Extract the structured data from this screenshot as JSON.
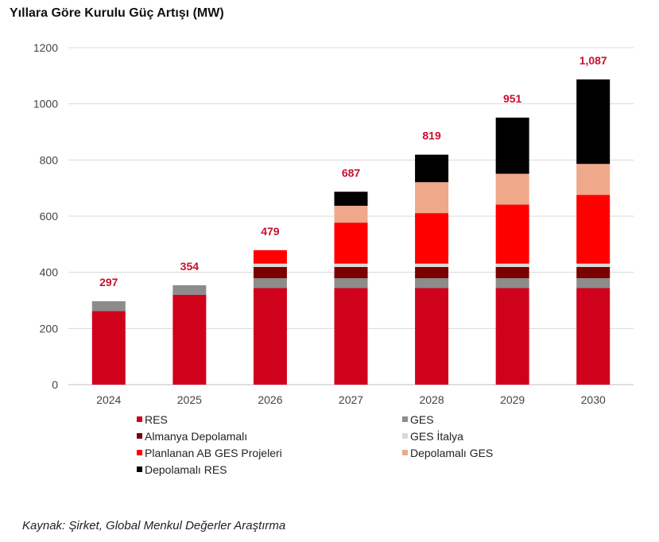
{
  "chart_data": {
    "type": "bar",
    "stacked": true,
    "title": "Yıllara Göre Kurulu Güç Artışı (MW)",
    "xlabel": "",
    "ylabel": "",
    "ylim": [
      0,
      1200
    ],
    "yticks": [
      0,
      200,
      400,
      600,
      800,
      1000,
      1200
    ],
    "grid": true,
    "legend": "bottom",
    "categories": [
      "2024",
      "2025",
      "2026",
      "2027",
      "2028",
      "2029",
      "2030"
    ],
    "totals": [
      "297",
      "354",
      "479",
      "687",
      "819",
      "951",
      "1,087"
    ],
    "series": [
      {
        "name": "RES",
        "color": "#d0021b",
        "values": [
          262,
          320,
          344,
          344,
          344,
          344,
          344
        ]
      },
      {
        "name": "GES",
        "color": "#8c8c8c",
        "values": [
          35,
          34,
          35,
          35,
          35,
          35,
          35
        ]
      },
      {
        "name": "Almanya Depolamalı",
        "color": "#7b0000",
        "values": [
          0,
          0,
          40,
          40,
          40,
          40,
          40
        ]
      },
      {
        "name": "GES İtalya",
        "color": "#d9d9d9",
        "values": [
          0,
          0,
          12,
          12,
          12,
          12,
          12
        ]
      },
      {
        "name": "Planlanan AB GES Projeleri",
        "color": "#ff0000",
        "values": [
          0,
          0,
          48,
          146,
          180,
          210,
          245
        ]
      },
      {
        "name": "Depolamalı GES",
        "color": "#f0a88a",
        "values": [
          0,
          0,
          0,
          60,
          110,
          110,
          110
        ]
      },
      {
        "name": "Depolamalı RES",
        "color": "#000000",
        "values": [
          0,
          0,
          0,
          50,
          98,
          200,
          301
        ]
      }
    ]
  },
  "source": "Kaynak: Şirket, Global Menkul Değerler Araştırma"
}
